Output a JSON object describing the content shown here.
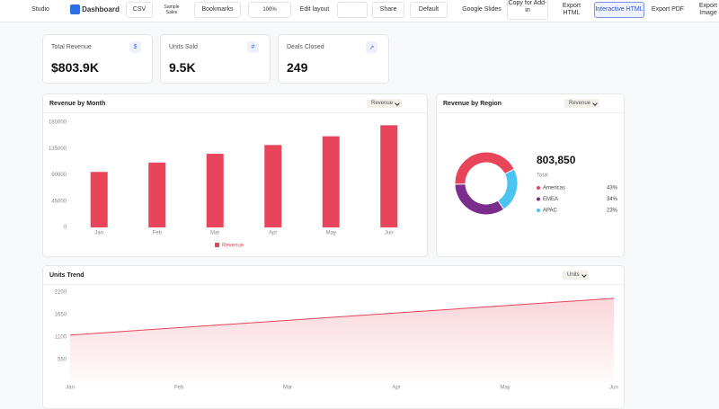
{
  "toolbar": {
    "studio": "Studio",
    "dashboard": "Dashboard",
    "csv": "CSV",
    "sample": "Sample Sales",
    "bookmarks": "Bookmarks",
    "zoom": "100%",
    "edit": "Edit layout",
    "share": "Share",
    "theme": "Default",
    "slides": "Google Slides",
    "copy": "Copy for Add-in",
    "export_html": "Export HTML",
    "interactive": "Interactive HTML",
    "export_pdf": "Export PDF",
    "export_image": "Export Image"
  },
  "kpis": [
    {
      "label": "Total Revenue",
      "value": "$803.9K",
      "icon": "$"
    },
    {
      "label": "Units Sold",
      "value": "9.5K",
      "icon": "#"
    },
    {
      "label": "Deals Closed",
      "value": "249"
    }
  ],
  "chart_data": [
    {
      "type": "bar",
      "title": "Revenue by Month",
      "selector": "Revenue",
      "categories": [
        "Jan",
        "Feb",
        "Mar",
        "Apr",
        "May",
        "Jun"
      ],
      "series": [
        {
          "name": "Revenue",
          "color": "#e8445a",
          "values": [
            95000,
            111000,
            126000,
            141000,
            156000,
            174850
          ]
        }
      ],
      "ylim": [
        0,
        180000
      ],
      "yticks": [
        0,
        45000,
        90000,
        135000,
        180000
      ]
    },
    {
      "type": "pie",
      "title": "Revenue by Region",
      "selector": "Revenue",
      "total": "803,850",
      "total_label": "Total",
      "categories": [
        "Americas",
        "EMEA",
        "APAC"
      ],
      "values": [
        43,
        34,
        23
      ],
      "value_labels": [
        "43%",
        "34%",
        "23%"
      ],
      "colors": [
        "#e8445a",
        "#7b2d8e",
        "#4cc3f0"
      ]
    },
    {
      "type": "line",
      "title": "Units Trend",
      "selector": "Units",
      "categories": [
        "Jan",
        "Feb",
        "Mar",
        "Apr",
        "May",
        "Jun"
      ],
      "series": [
        {
          "name": "Units",
          "color": "#e8445a",
          "values": [
            1150,
            1330,
            1510,
            1690,
            1870,
            2050
          ]
        }
      ],
      "ylim": [
        0,
        2200
      ],
      "yticks": [
        550,
        1100,
        1650,
        2200
      ]
    }
  ]
}
